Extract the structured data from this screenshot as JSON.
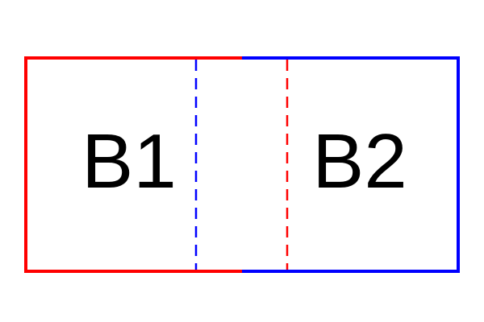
{
  "diagram": {
    "boxes": [
      {
        "label": "B1",
        "border_color": "#ff0000",
        "overlap_edge_color": "#0000ff",
        "overlap_edge_style": "dashed"
      },
      {
        "label": "B2",
        "border_color": "#0000ff",
        "overlap_edge_color": "#ff0000",
        "overlap_edge_style": "dashed"
      }
    ],
    "relationship": "overlapping",
    "colors": {
      "red": "#ff0000",
      "blue": "#0000ff",
      "text": "#000000",
      "background": "#ffffff"
    }
  }
}
